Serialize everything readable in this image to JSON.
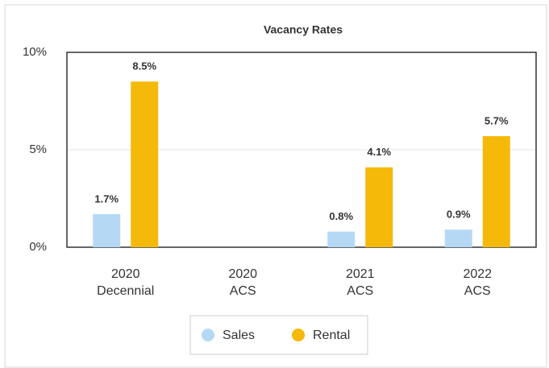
{
  "chart_data": {
    "type": "bar",
    "title": "Vacancy Rates",
    "categories": [
      [
        "2020",
        "Decennial"
      ],
      [
        "2020",
        "ACS"
      ],
      [
        "2021",
        "ACS"
      ],
      [
        "2022",
        "ACS"
      ]
    ],
    "series": [
      {
        "name": "Sales",
        "color": "#b5d9f5",
        "values": [
          1.7,
          null,
          0.8,
          0.9
        ],
        "value_labels": [
          "1.7%",
          null,
          "0.8%",
          "0.9%"
        ]
      },
      {
        "name": "Rental",
        "color": "#f5b90a",
        "values": [
          8.5,
          null,
          4.1,
          5.7
        ],
        "value_labels": [
          "8.5%",
          null,
          "4.1%",
          "5.7%"
        ]
      }
    ],
    "ylim": [
      0,
      10
    ],
    "yticks": [
      {
        "value": 0,
        "label": "0%"
      },
      {
        "value": 5,
        "label": "5%"
      },
      {
        "value": 10,
        "label": "10%"
      }
    ],
    "grid": true,
    "legend": "bottom"
  }
}
